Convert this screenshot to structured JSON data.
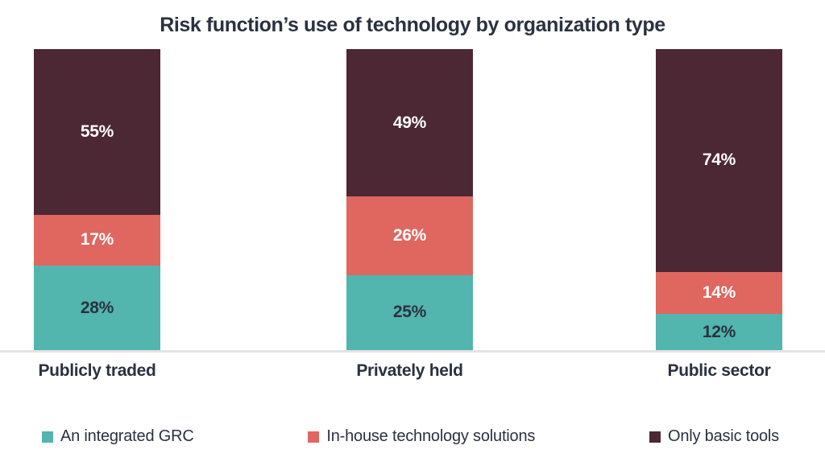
{
  "title": "Risk function’s use of technology by organization type",
  "chart_data": {
    "type": "bar",
    "stacked": true,
    "orientation": "vertical",
    "unit": "%",
    "categories": [
      "Publicly traded",
      "Privately held",
      "Public sector"
    ],
    "series": [
      {
        "name": "An integrated GRC",
        "color": "#52B5AE",
        "value_label_color": "#2A3240",
        "values": [
          28,
          25,
          12
        ]
      },
      {
        "name": "In-house technology solutions",
        "color": "#DF675F",
        "value_label_color": "#FFFFFF",
        "values": [
          17,
          26,
          14
        ]
      },
      {
        "name": "Only basic tools",
        "color": "#4C2734",
        "value_label_color": "#FFFFFF",
        "values": [
          55,
          49,
          74
        ]
      }
    ],
    "ylim": [
      0,
      100
    ],
    "grid": false,
    "axes_shown": false,
    "value_labels_shown": true,
    "legend_position": "bottom",
    "title_color": "#2A3240",
    "axis_line_color": "#E3E4E6",
    "background": "#FFFFFF"
  }
}
